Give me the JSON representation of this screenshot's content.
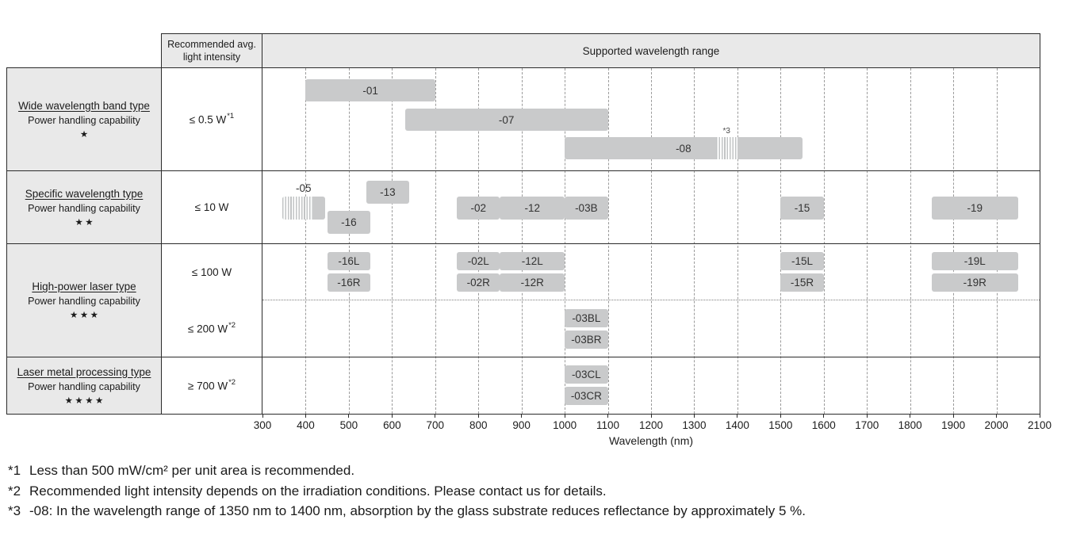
{
  "table": {
    "intensity_header": {
      "line1": "Recommended avg.",
      "line2": "light intensity"
    },
    "rows": [
      {
        "title": "Wide wavelength band type",
        "subtitle": "Power handling capability",
        "stars": "★",
        "cells": [
          {
            "value": "≤ 0.5 W",
            "sup": "*1"
          }
        ]
      },
      {
        "title": "Specific wavelength type",
        "subtitle": "Power handling capability",
        "stars": "★★",
        "cells": [
          {
            "value": "≤ 10 W",
            "sup": ""
          }
        ]
      },
      {
        "title": "High-power laser type",
        "subtitle": "Power handling capability",
        "stars": "★★★",
        "cells": [
          {
            "value": "≤ 100 W",
            "sup": ""
          },
          {
            "value": "≤ 200 W",
            "sup": "*2"
          }
        ]
      },
      {
        "title": "Laser metal processing type",
        "subtitle": "Power handling capability",
        "stars": "★★★★",
        "cells": [
          {
            "value": "≥ 700 W",
            "sup": "*2"
          }
        ]
      }
    ]
  },
  "chart_data": {
    "type": "bar",
    "subtype": "horizontal-wavelength-range-bars",
    "title": "Supported wavelength range",
    "xlabel": "Wavelength (nm)",
    "xlim": [
      300,
      2100
    ],
    "x_ticks": [
      300,
      400,
      500,
      600,
      700,
      800,
      900,
      1000,
      1100,
      1200,
      1300,
      1400,
      1500,
      1600,
      1700,
      1800,
      1900,
      2000,
      2100
    ],
    "grid": "vertical-dashed",
    "bars": [
      {
        "label": "-01",
        "range": [
          400,
          700
        ],
        "slot": "a0",
        "group": "Wide wavelength band type"
      },
      {
        "label": "-07",
        "range": [
          630,
          1100
        ],
        "slot": "a1",
        "group": "Wide wavelength band type"
      },
      {
        "label": "-08",
        "range": [
          1000,
          1550
        ],
        "slot": "a2",
        "group": "Wide wavelength band type",
        "hatch": [
          1350,
          1400
        ],
        "note": "*3"
      },
      {
        "label": "-05",
        "range": [
          345,
          445
        ],
        "slot": "b_mid",
        "group": "Specific wavelength type",
        "hatch": [
          345,
          415
        ],
        "label_pos": "above"
      },
      {
        "label": "-13",
        "range": [
          540,
          640
        ],
        "slot": "b_top",
        "group": "Specific wavelength type"
      },
      {
        "label": "-16",
        "range": [
          450,
          550
        ],
        "slot": "b_bot",
        "group": "Specific wavelength type"
      },
      {
        "label": "-02",
        "range": [
          750,
          850
        ],
        "slot": "b_mid",
        "group": "Specific wavelength type"
      },
      {
        "label": "-12",
        "range": [
          850,
          1000
        ],
        "slot": "b_mid",
        "group": "Specific wavelength type"
      },
      {
        "label": "-03B",
        "range": [
          1000,
          1100
        ],
        "slot": "b_mid",
        "group": "Specific wavelength type"
      },
      {
        "label": "-15",
        "range": [
          1500,
          1600
        ],
        "slot": "b_mid",
        "group": "Specific wavelength type"
      },
      {
        "label": "-19",
        "range": [
          1850,
          2050
        ],
        "slot": "b_mid",
        "group": "Specific wavelength type"
      },
      {
        "label": "-16L",
        "range": [
          450,
          550
        ],
        "slot": "c_L",
        "group": "High-power laser type ≤ 100 W"
      },
      {
        "label": "-16R",
        "range": [
          450,
          550
        ],
        "slot": "c_R",
        "group": "High-power laser type ≤ 100 W"
      },
      {
        "label": "-02L",
        "range": [
          750,
          850
        ],
        "slot": "c_L",
        "group": "High-power laser type ≤ 100 W"
      },
      {
        "label": "-02R",
        "range": [
          750,
          850
        ],
        "slot": "c_R",
        "group": "High-power laser type ≤ 100 W"
      },
      {
        "label": "-12L",
        "range": [
          850,
          1000
        ],
        "slot": "c_L",
        "group": "High-power laser type ≤ 100 W"
      },
      {
        "label": "-12R",
        "range": [
          850,
          1000
        ],
        "slot": "c_R",
        "group": "High-power laser type ≤ 100 W"
      },
      {
        "label": "-15L",
        "range": [
          1500,
          1600
        ],
        "slot": "c_L",
        "group": "High-power laser type ≤ 100 W"
      },
      {
        "label": "-15R",
        "range": [
          1500,
          1600
        ],
        "slot": "c_R",
        "group": "High-power laser type ≤ 100 W"
      },
      {
        "label": "-19L",
        "range": [
          1850,
          2050
        ],
        "slot": "c_L",
        "group": "High-power laser type ≤ 100 W"
      },
      {
        "label": "-19R",
        "range": [
          1850,
          2050
        ],
        "slot": "c_R",
        "group": "High-power laser type ≤ 100 W"
      },
      {
        "label": "-03BL",
        "range": [
          1000,
          1100
        ],
        "slot": "c_L2",
        "group": "High-power laser type ≤ 200 W"
      },
      {
        "label": "-03BR",
        "range": [
          1000,
          1100
        ],
        "slot": "c_R2",
        "group": "High-power laser type ≤ 200 W"
      },
      {
        "label": "-03CL",
        "range": [
          1000,
          1100
        ],
        "slot": "d_L",
        "group": "Laser metal processing type"
      },
      {
        "label": "-03CR",
        "range": [
          1000,
          1100
        ],
        "slot": "d_R",
        "group": "Laser metal processing type"
      }
    ]
  },
  "footnotes": [
    {
      "marker": "*1",
      "text": "Less than 500 mW/cm² per unit area is recommended."
    },
    {
      "marker": "*2",
      "text": "Recommended light intensity depends on the irradiation conditions. Please contact us for details."
    },
    {
      "marker": "*3",
      "text": "-08: In the wavelength range of 1350 nm to 1400 nm, absorption by the glass substrate reduces reflectance by approximately 5 %."
    }
  ],
  "palette": {
    "cell_bg": "#e9e9e9",
    "bar_fill": "#c9cacb",
    "border": "#2b2b2b",
    "grid_line": "#9b9b9b",
    "text": "#1c1c1c"
  }
}
